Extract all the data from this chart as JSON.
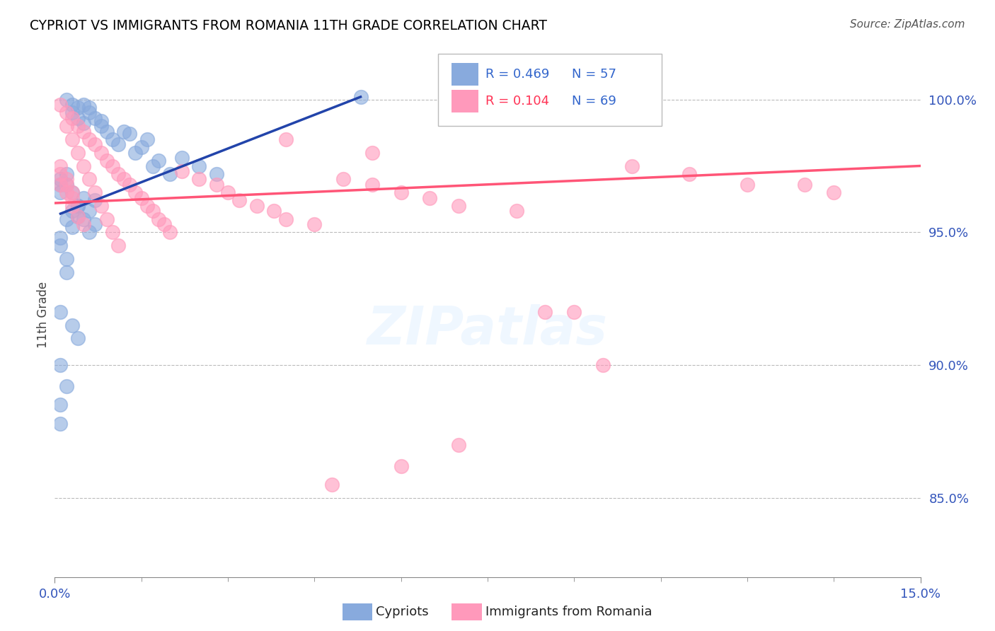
{
  "title": "CYPRIOT VS IMMIGRANTS FROM ROMANIA 11TH GRADE CORRELATION CHART",
  "source": "Source: ZipAtlas.com",
  "ylabel": "11th Grade",
  "blue_color": "#88AADD",
  "pink_color": "#FF99BB",
  "blue_line_color": "#2244AA",
  "pink_line_color": "#FF5577",
  "legend_blue_R_color": "#3366CC",
  "legend_pink_R_color": "#FF3355",
  "legend_N_color": "#3366CC",
  "xmin": 0.0,
  "xmax": 0.15,
  "ymin": 0.82,
  "ymax": 1.018,
  "yticks": [
    1.0,
    0.95,
    0.9,
    0.85
  ],
  "ytick_labels": [
    "100.0%",
    "95.0%",
    "90.0%",
    "85.0%"
  ],
  "blue_line_x": [
    0.001,
    0.053
  ],
  "blue_line_y": [
    0.957,
    1.001
  ],
  "pink_line_x": [
    0.0,
    0.15
  ],
  "pink_line_y": [
    0.961,
    0.975
  ],
  "blue_x": [
    0.002,
    0.003,
    0.003,
    0.004,
    0.004,
    0.005,
    0.005,
    0.006,
    0.006,
    0.007,
    0.008,
    0.008,
    0.009,
    0.01,
    0.011,
    0.012,
    0.013,
    0.014,
    0.015,
    0.016,
    0.017,
    0.018,
    0.02,
    0.022,
    0.025,
    0.028,
    0.001,
    0.001,
    0.001,
    0.002,
    0.002,
    0.003,
    0.004,
    0.005,
    0.006,
    0.007,
    0.002,
    0.003,
    0.003,
    0.004,
    0.004,
    0.005,
    0.006,
    0.007,
    0.001,
    0.001,
    0.002,
    0.002,
    0.001,
    0.003,
    0.004,
    0.001,
    0.002,
    0.001,
    0.001,
    0.053
  ],
  "blue_y": [
    1.0,
    0.998,
    0.995,
    0.997,
    0.993,
    0.998,
    0.991,
    0.997,
    0.995,
    0.993,
    0.99,
    0.992,
    0.988,
    0.985,
    0.983,
    0.988,
    0.987,
    0.98,
    0.982,
    0.985,
    0.975,
    0.977,
    0.972,
    0.978,
    0.975,
    0.972,
    0.97,
    0.968,
    0.965,
    0.968,
    0.972,
    0.965,
    0.96,
    0.963,
    0.958,
    0.962,
    0.955,
    0.958,
    0.952,
    0.956,
    0.96,
    0.955,
    0.95,
    0.953,
    0.945,
    0.948,
    0.94,
    0.935,
    0.92,
    0.915,
    0.91,
    0.9,
    0.892,
    0.885,
    0.878,
    1.001
  ],
  "pink_x": [
    0.001,
    0.002,
    0.003,
    0.004,
    0.005,
    0.006,
    0.007,
    0.008,
    0.009,
    0.01,
    0.011,
    0.012,
    0.013,
    0.014,
    0.015,
    0.016,
    0.017,
    0.018,
    0.019,
    0.02,
    0.002,
    0.003,
    0.004,
    0.005,
    0.006,
    0.007,
    0.008,
    0.009,
    0.01,
    0.011,
    0.001,
    0.002,
    0.003,
    0.004,
    0.005,
    0.001,
    0.002,
    0.003,
    0.001,
    0.002,
    0.003,
    0.022,
    0.025,
    0.028,
    0.03,
    0.032,
    0.035,
    0.038,
    0.04,
    0.045,
    0.05,
    0.055,
    0.06,
    0.065,
    0.07,
    0.08,
    0.09,
    0.1,
    0.11,
    0.12,
    0.085,
    0.095,
    0.13,
    0.135,
    0.055,
    0.04,
    0.07,
    0.06,
    0.048
  ],
  "pink_y": [
    0.998,
    0.995,
    0.993,
    0.99,
    0.988,
    0.985,
    0.983,
    0.98,
    0.977,
    0.975,
    0.972,
    0.97,
    0.968,
    0.965,
    0.963,
    0.96,
    0.958,
    0.955,
    0.953,
    0.95,
    0.99,
    0.985,
    0.98,
    0.975,
    0.97,
    0.965,
    0.96,
    0.955,
    0.95,
    0.945,
    0.968,
    0.965,
    0.96,
    0.956,
    0.953,
    0.972,
    0.968,
    0.963,
    0.975,
    0.97,
    0.965,
    0.973,
    0.97,
    0.968,
    0.965,
    0.962,
    0.96,
    0.958,
    0.955,
    0.953,
    0.97,
    0.968,
    0.965,
    0.963,
    0.96,
    0.958,
    0.92,
    0.975,
    0.972,
    0.968,
    0.92,
    0.9,
    0.968,
    0.965,
    0.98,
    0.985,
    0.87,
    0.862,
    0.855
  ]
}
